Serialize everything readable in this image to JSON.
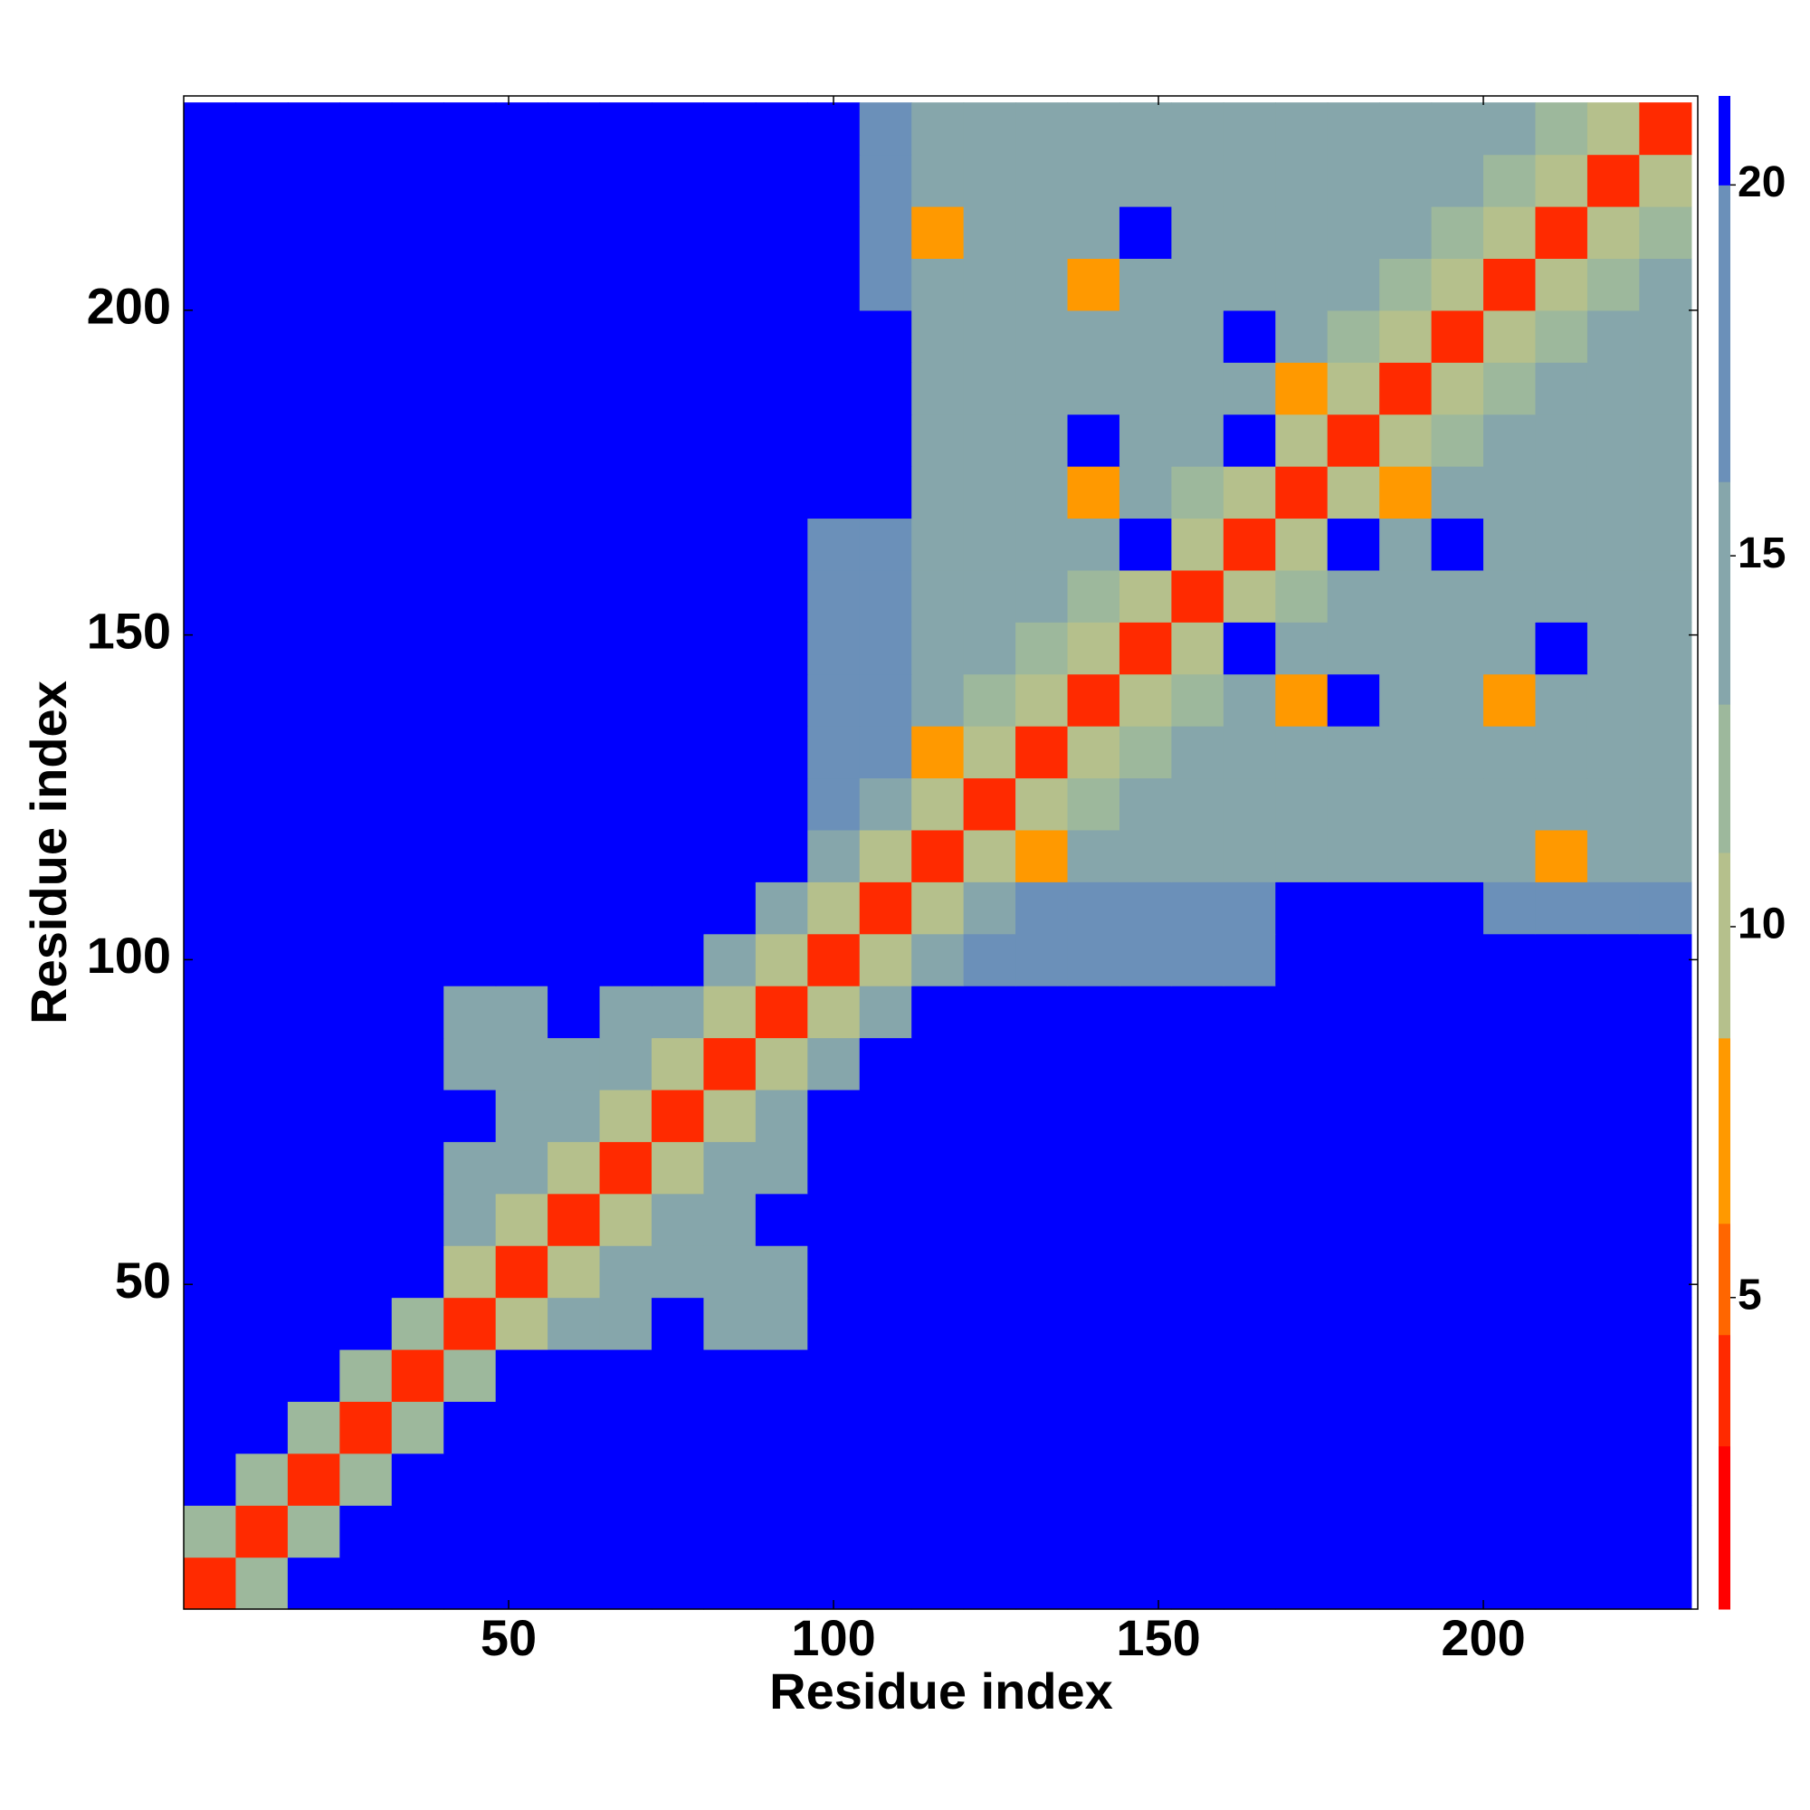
{
  "chart_data": {
    "type": "heatmap",
    "x_label": "Residue index",
    "y_label": "Residue index",
    "xlim": [
      0,
      233
    ],
    "ylim": [
      0,
      233
    ],
    "xticks": [
      50,
      100,
      150,
      200
    ],
    "yticks": [
      50,
      100,
      150,
      200
    ],
    "xbins": [
      0,
      8,
      16,
      24,
      32,
      40,
      48,
      56,
      64,
      72,
      80,
      88,
      96,
      104,
      112,
      120,
      128,
      136,
      144,
      152,
      160,
      168,
      176,
      184,
      192,
      200,
      208,
      216,
      224,
      232
    ],
    "ybins": [
      0,
      8,
      16,
      24,
      32,
      40,
      48,
      56,
      64,
      72,
      80,
      88,
      96,
      104,
      112,
      120,
      128,
      136,
      144,
      152,
      160,
      168,
      176,
      184,
      192,
      200,
      208,
      216,
      224,
      232
    ],
    "colorscale": [
      [
        0.8,
        "#ff0000"
      ],
      [
        3,
        "#ff2a00"
      ],
      [
        4.5,
        "#ff6600"
      ],
      [
        6,
        "#ff9900"
      ],
      [
        8.5,
        "#b5c08c"
      ],
      [
        11,
        "#9db89c"
      ],
      [
        13,
        "#86a6ab"
      ],
      [
        16,
        "#6b90b9"
      ],
      [
        20,
        "#0000ff"
      ]
    ],
    "colorbar_lim": [
      0.8,
      21.2
    ],
    "colorbar_ticks": [
      5,
      10,
      15,
      20
    ],
    "z": [
      [
        3,
        12,
        21,
        21,
        21,
        21,
        21,
        21,
        21,
        21,
        21,
        21,
        21,
        21,
        21,
        21,
        21,
        21,
        21,
        21,
        21,
        21,
        21,
        21,
        21,
        21,
        21,
        21,
        21
      ],
      [
        12,
        3,
        12,
        21,
        21,
        21,
        21,
        21,
        21,
        21,
        21,
        21,
        21,
        21,
        21,
        21,
        21,
        21,
        21,
        21,
        21,
        21,
        21,
        21,
        21,
        21,
        21,
        21,
        21
      ],
      [
        21,
        12,
        3,
        12,
        21,
        21,
        21,
        21,
        21,
        21,
        21,
        21,
        21,
        21,
        21,
        21,
        21,
        21,
        21,
        21,
        21,
        21,
        21,
        21,
        21,
        21,
        21,
        21,
        21
      ],
      [
        21,
        21,
        12,
        3,
        12,
        21,
        21,
        21,
        21,
        21,
        21,
        21,
        21,
        21,
        21,
        21,
        21,
        21,
        21,
        21,
        21,
        21,
        21,
        21,
        21,
        21,
        21,
        21,
        21
      ],
      [
        21,
        21,
        21,
        12,
        3,
        12,
        21,
        21,
        21,
        21,
        21,
        21,
        21,
        21,
        21,
        21,
        21,
        21,
        21,
        21,
        21,
        21,
        21,
        21,
        21,
        21,
        21,
        21,
        21
      ],
      [
        21,
        21,
        21,
        21,
        12,
        3,
        9,
        15,
        15,
        21,
        13,
        13,
        21,
        21,
        21,
        21,
        21,
        21,
        21,
        21,
        21,
        21,
        21,
        21,
        21,
        21,
        21,
        21,
        21
      ],
      [
        21,
        21,
        21,
        21,
        21,
        9,
        3,
        9,
        15,
        13,
        13,
        13,
        21,
        21,
        21,
        21,
        21,
        21,
        21,
        21,
        21,
        21,
        21,
        21,
        21,
        21,
        21,
        21,
        21
      ],
      [
        21,
        21,
        21,
        21,
        21,
        15,
        9,
        3,
        9,
        13,
        13,
        21,
        21,
        21,
        21,
        21,
        21,
        21,
        21,
        21,
        21,
        21,
        21,
        21,
        21,
        21,
        21,
        21,
        21
      ],
      [
        21,
        21,
        21,
        21,
        21,
        15,
        15,
        9,
        3,
        9,
        15,
        15,
        21,
        21,
        21,
        21,
        21,
        21,
        21,
        21,
        21,
        21,
        21,
        21,
        21,
        21,
        21,
        21,
        21
      ],
      [
        21,
        21,
        21,
        21,
        21,
        21,
        13,
        13,
        9,
        3,
        9,
        15,
        21,
        21,
        21,
        21,
        21,
        21,
        21,
        21,
        21,
        21,
        21,
        21,
        21,
        21,
        21,
        21,
        21
      ],
      [
        21,
        21,
        21,
        21,
        21,
        13,
        13,
        13,
        15,
        9,
        3,
        9,
        14,
        21,
        21,
        21,
        21,
        21,
        21,
        21,
        21,
        21,
        21,
        21,
        21,
        21,
        21,
        21,
        21
      ],
      [
        21,
        21,
        21,
        21,
        21,
        13,
        13,
        21,
        15,
        15,
        9,
        3,
        9,
        14,
        21,
        21,
        21,
        21,
        21,
        21,
        21,
        21,
        21,
        21,
        21,
        21,
        21,
        21,
        21
      ],
      [
        21,
        21,
        21,
        21,
        21,
        21,
        21,
        21,
        21,
        21,
        14,
        9,
        3,
        9,
        14,
        17,
        17,
        17,
        17,
        17,
        17,
        21,
        21,
        21,
        21,
        21,
        21,
        21,
        21
      ],
      [
        21,
        21,
        21,
        21,
        21,
        21,
        21,
        21,
        21,
        21,
        21,
        14,
        9,
        3,
        9,
        14,
        17,
        17,
        17,
        17,
        17,
        21,
        21,
        21,
        21,
        17,
        17,
        17,
        17
      ],
      [
        21,
        21,
        21,
        21,
        21,
        21,
        21,
        21,
        21,
        21,
        21,
        21,
        14,
        9,
        3,
        9,
        7,
        15,
        15,
        15,
        15,
        15,
        15,
        15,
        15,
        15,
        7,
        15,
        15
      ],
      [
        21,
        21,
        21,
        21,
        21,
        21,
        21,
        21,
        21,
        21,
        21,
        21,
        17,
        14,
        9,
        3,
        9,
        12,
        15,
        15,
        15,
        15,
        15,
        15,
        15,
        15,
        15,
        15,
        15
      ],
      [
        21,
        21,
        21,
        21,
        21,
        21,
        21,
        21,
        21,
        21,
        21,
        21,
        17,
        17,
        7,
        9,
        3,
        9,
        12,
        15,
        15,
        15,
        15,
        15,
        15,
        15,
        15,
        15,
        15
      ],
      [
        21,
        21,
        21,
        21,
        21,
        21,
        21,
        21,
        21,
        21,
        21,
        21,
        17,
        17,
        15,
        12,
        9,
        3,
        9,
        12,
        15,
        7,
        21,
        15,
        15,
        7,
        15,
        15,
        15
      ],
      [
        21,
        21,
        21,
        21,
        21,
        21,
        21,
        21,
        21,
        21,
        21,
        21,
        17,
        17,
        15,
        15,
        12,
        9,
        3,
        9,
        21,
        15,
        15,
        15,
        15,
        15,
        21,
        15,
        15
      ],
      [
        21,
        21,
        21,
        21,
        21,
        21,
        21,
        21,
        21,
        21,
        21,
        21,
        17,
        17,
        15,
        15,
        15,
        12,
        9,
        3,
        9,
        12,
        15,
        15,
        15,
        15,
        15,
        15,
        15
      ],
      [
        21,
        21,
        21,
        21,
        21,
        21,
        21,
        21,
        21,
        21,
        21,
        21,
        17,
        17,
        15,
        15,
        15,
        15,
        21,
        9,
        3,
        9,
        21,
        15,
        21,
        15,
        15,
        15,
        15
      ],
      [
        21,
        21,
        21,
        21,
        21,
        21,
        21,
        21,
        21,
        21,
        21,
        21,
        21,
        21,
        15,
        15,
        15,
        7,
        15,
        12,
        9,
        3,
        9,
        7,
        15,
        15,
        15,
        15,
        15
      ],
      [
        21,
        21,
        21,
        21,
        21,
        21,
        21,
        21,
        21,
        21,
        21,
        21,
        21,
        21,
        15,
        15,
        15,
        21,
        15,
        15,
        21,
        9,
        3,
        9,
        12,
        15,
        15,
        15,
        15
      ],
      [
        21,
        21,
        21,
        21,
        21,
        21,
        21,
        21,
        21,
        21,
        21,
        21,
        21,
        21,
        15,
        15,
        15,
        15,
        15,
        15,
        15,
        7,
        9,
        3,
        9,
        12,
        15,
        15,
        15
      ],
      [
        21,
        21,
        21,
        21,
        21,
        21,
        21,
        21,
        21,
        21,
        21,
        21,
        21,
        21,
        15,
        15,
        15,
        15,
        15,
        15,
        21,
        15,
        12,
        9,
        3,
        9,
        12,
        15,
        15
      ],
      [
        21,
        21,
        21,
        21,
        21,
        21,
        21,
        21,
        21,
        21,
        21,
        21,
        21,
        17,
        15,
        15,
        15,
        7,
        15,
        15,
        15,
        15,
        15,
        12,
        9,
        3,
        9,
        12,
        15
      ],
      [
        21,
        21,
        21,
        21,
        21,
        21,
        21,
        21,
        21,
        21,
        21,
        21,
        21,
        17,
        7,
        15,
        15,
        15,
        21,
        15,
        15,
        15,
        15,
        15,
        12,
        9,
        3,
        9,
        12
      ],
      [
        21,
        21,
        21,
        21,
        21,
        21,
        21,
        21,
        21,
        21,
        21,
        21,
        21,
        17,
        15,
        15,
        15,
        15,
        15,
        15,
        15,
        15,
        15,
        15,
        15,
        12,
        9,
        3,
        9
      ],
      [
        21,
        21,
        21,
        21,
        21,
        21,
        21,
        21,
        21,
        21,
        21,
        21,
        21,
        17,
        15,
        15,
        15,
        15,
        15,
        15,
        15,
        15,
        15,
        15,
        15,
        15,
        12,
        9,
        3
      ]
    ]
  }
}
